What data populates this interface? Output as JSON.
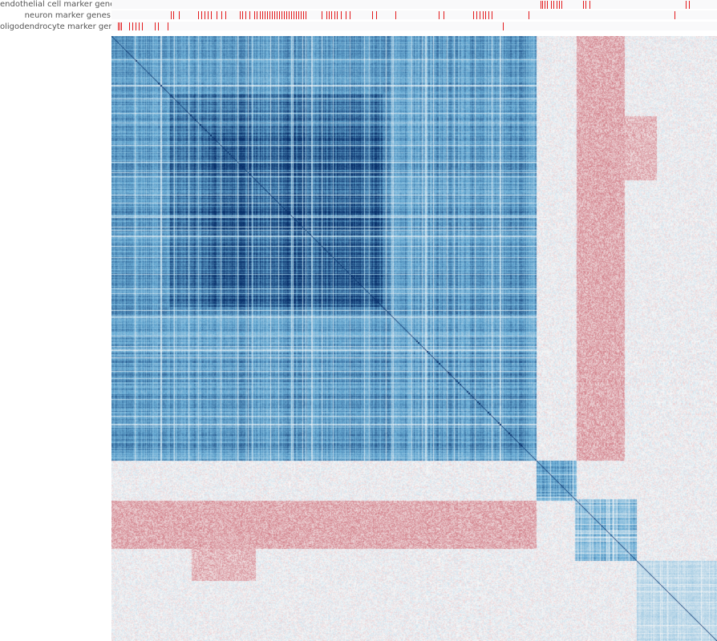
{
  "chart_data": {
    "type": "heatmap",
    "title": "",
    "value_range": [
      -0.3,
      1.0
    ],
    "diverging": true,
    "colors": {
      "positive": "#08306b",
      "negative": "#b2182b",
      "neutral": "#f7f7f7",
      "marker_tick": "#e31a1c"
    },
    "n_genes": 755,
    "clusters": [
      {
        "start": 0,
        "end": 530,
        "strength": 0.62
      },
      {
        "start": 72,
        "end": 338,
        "strength": 0.8
      },
      {
        "start": 118,
        "end": 338,
        "strength": 0.88
      },
      {
        "start": 530,
        "end": 580,
        "strength": 0.55
      },
      {
        "start": 578,
        "end": 655,
        "strength": 0.48
      },
      {
        "start": 655,
        "end": 755,
        "strength": 0.22
      }
    ],
    "anticorrelated_blocks": [
      {
        "rows": [
          0,
          530
        ],
        "cols": [
          580,
          640
        ],
        "value": -0.18
      },
      {
        "rows": [
          580,
          640
        ],
        "cols": [
          0,
          530
        ],
        "value": -0.18
      },
      {
        "rows": [
          580,
          680
        ],
        "cols": [
          100,
          180
        ],
        "value": -0.15
      }
    ],
    "annotation_tracks": [
      {
        "label": "endothelial cell marker genes",
        "positions": [
          535,
          537,
          540,
          543,
          548,
          551,
          555,
          558,
          561,
          588,
          591,
          596,
          716,
          720
        ]
      },
      {
        "label": "neuron marker genes",
        "positions": [
          74,
          77,
          84,
          108,
          112,
          116,
          120,
          124,
          131,
          137,
          142,
          160,
          163,
          167,
          172,
          178,
          181,
          185,
          188,
          191,
          194,
          197,
          200,
          203,
          206,
          209,
          212,
          215,
          218,
          221,
          224,
          227,
          230,
          233,
          236,
          239,
          242,
          262,
          268,
          271,
          274,
          278,
          281,
          286,
          292,
          297,
          325,
          330,
          354,
          408,
          414,
          451,
          455,
          459,
          463,
          466,
          470,
          474,
          520,
          702
        ]
      },
      {
        "label": "oligodendrocyte marker genes",
        "positions": [
          8,
          10,
          12,
          22,
          26,
          30,
          34,
          38,
          54,
          58,
          70,
          488
        ]
      }
    ]
  }
}
